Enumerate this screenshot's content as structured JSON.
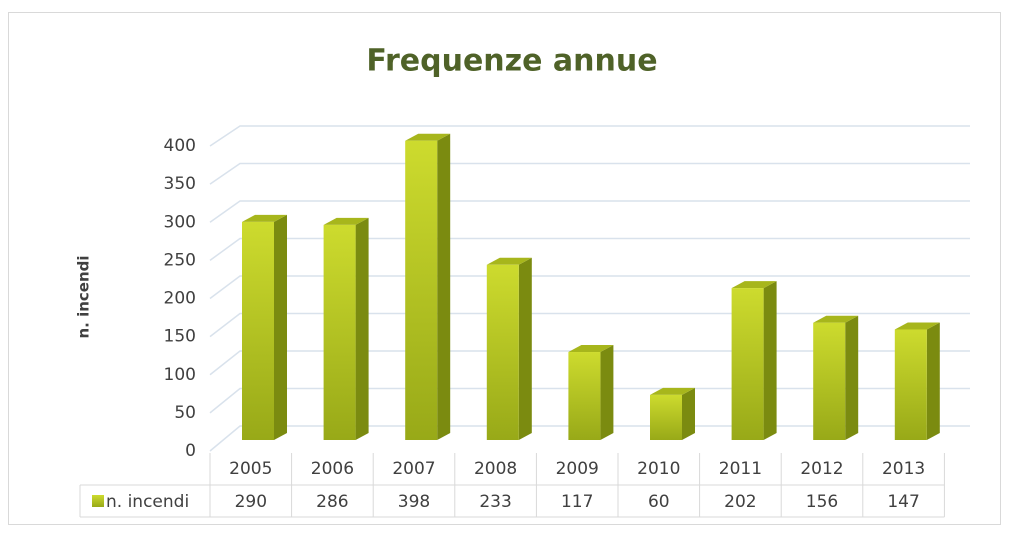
{
  "chart_data": {
    "type": "bar",
    "title": "Frequenze annue",
    "y_label": "n. incendi",
    "categories": [
      "2005",
      "2006",
      "2007",
      "2008",
      "2009",
      "2010",
      "2011",
      "2012",
      "2013"
    ],
    "series": [
      {
        "name": "n. incendi",
        "color": "#b3c21f",
        "values": [
          290,
          286,
          398,
          233,
          117,
          60,
          202,
          156,
          147
        ]
      }
    ],
    "ylim": [
      0,
      400
    ],
    "yticks": [
      0,
      50,
      100,
      150,
      200,
      250,
      300,
      350,
      400
    ],
    "grid": true
  }
}
